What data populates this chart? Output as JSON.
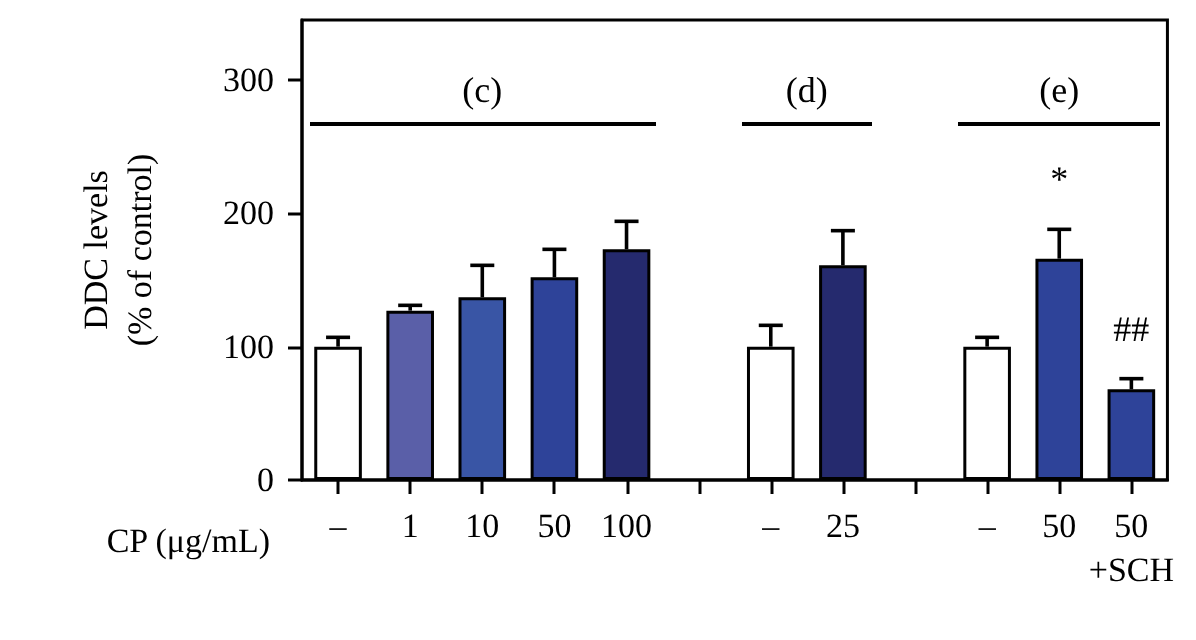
{
  "chart_data": {
    "type": "bar",
    "xlabel": "CP (μg/mL)",
    "ylabel": "DDC levels\n(% of control)",
    "categories": [
      "–",
      "1",
      "10",
      "50",
      "100",
      null,
      "–",
      "25",
      null,
      "–",
      "50",
      "50\n+SCH"
    ],
    "values": [
      100,
      127,
      137,
      152,
      173,
      null,
      100,
      161,
      null,
      100,
      166,
      68
    ],
    "colors": [
      "#ffffff",
      "#5a5fa8",
      "#3955a5",
      "#2e4399",
      "#252a6e",
      null,
      "#ffffff",
      "#252a6e",
      null,
      "#ffffff",
      "#2e4399",
      "#2e4399"
    ],
    "errors": [
      [
        100,
        107
      ],
      [
        127,
        131
      ],
      [
        137,
        161
      ],
      [
        152,
        173
      ],
      [
        173,
        194
      ],
      null,
      [
        100,
        116
      ],
      [
        161,
        187
      ],
      null,
      [
        100,
        107
      ],
      [
        166,
        188
      ],
      [
        68,
        76
      ]
    ],
    "ylim": [
      0,
      345
    ],
    "yticks": [
      0,
      100,
      200,
      300
    ],
    "annotations": [
      "(c)",
      "(d)",
      "(e)",
      {
        "text": "*",
        "y": 188
      },
      {
        "text": "##",
        "x": "50\n+SCH",
        "y": 76
      }
    ]
  }
}
